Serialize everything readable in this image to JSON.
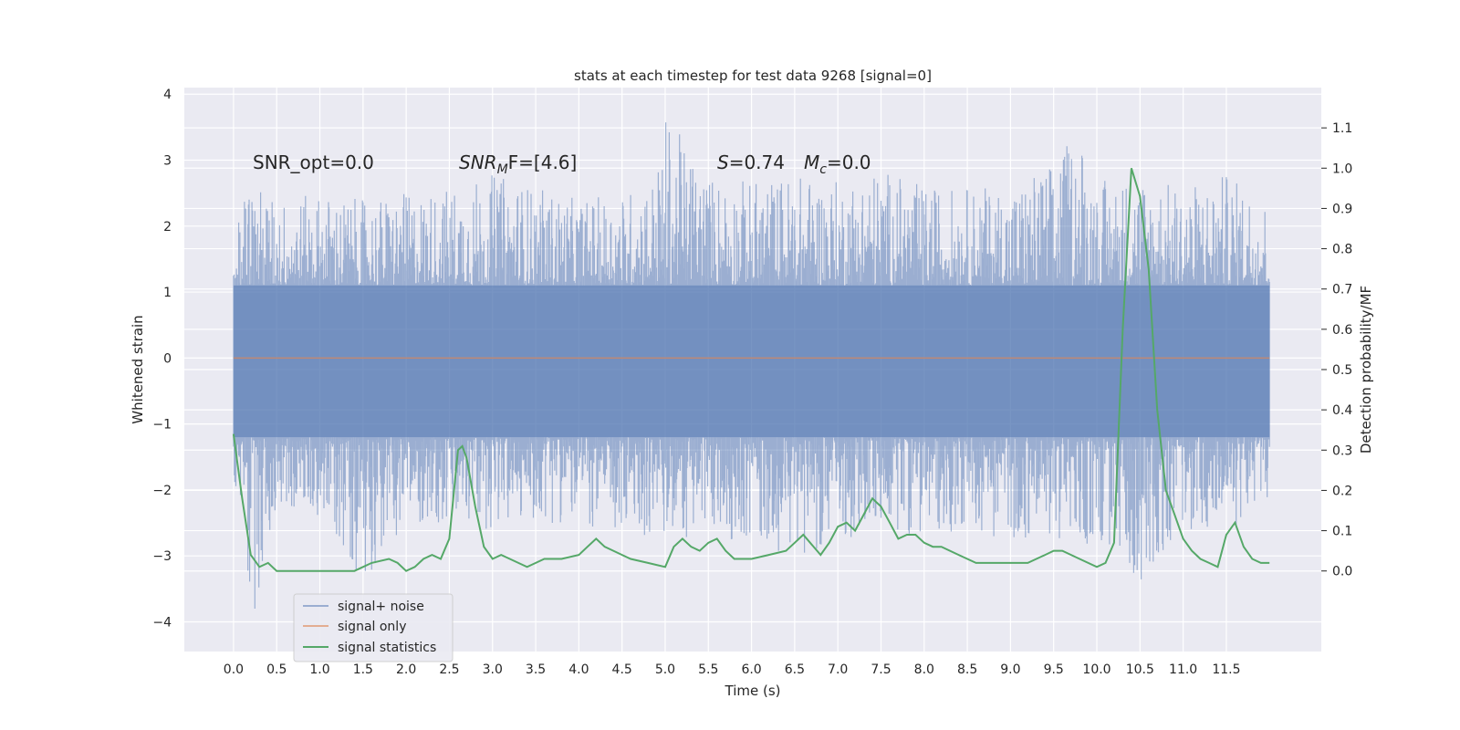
{
  "chart_data": {
    "type": "line",
    "title": "stats at each timestep for test data 9268 [signal=0]",
    "xlabel": "Time (s)",
    "ylabel_left": "Whitened strain",
    "ylabel_right": "Detection probability/MF",
    "xlim": [
      -0.57,
      12.6
    ],
    "ylim_left": [
      -4.45,
      4.1
    ],
    "ylim_right": [
      -0.2,
      1.2
    ],
    "x_ticks": [
      "0.0",
      "0.5",
      "1.0",
      "1.5",
      "2.0",
      "2.5",
      "3.0",
      "3.5",
      "4.0",
      "4.5",
      "5.0",
      "5.5",
      "6.0",
      "6.5",
      "7.0",
      "7.5",
      "8.0",
      "8.5",
      "9.0",
      "9.5",
      "10.0",
      "10.5",
      "11.0",
      "11.5"
    ],
    "y_left_ticks": [
      "4",
      "3",
      "2",
      "1",
      "0",
      "−1",
      "−2",
      "−3",
      "−4"
    ],
    "y_right_ticks": [
      "1.1",
      "1.0",
      "0.9",
      "0.8",
      "0.7",
      "0.6",
      "0.5",
      "0.4",
      "0.3",
      "0.2",
      "0.1",
      "0.0"
    ],
    "annotations": {
      "snr_opt": "SNR_opt=0.0",
      "snr_mf_a": "SNR",
      "snr_mf_sub": "M",
      "snr_mf_b": "F=[4.6]",
      "s_sym": "S",
      "s_val": "=0.74",
      "mc_sym": "M",
      "mc_sub": "c",
      "mc_val": "=0.0"
    },
    "legend": {
      "placement": "lower-left",
      "entries": [
        "signal+ noise",
        "signal only",
        "signal statistics"
      ]
    },
    "noise_envelope": {
      "x": [
        0.0,
        0.1,
        0.2,
        0.5,
        1.0,
        1.5,
        2.0,
        2.5,
        3.0,
        3.5,
        4.0,
        4.5,
        4.9,
        5.0,
        5.5,
        6.0,
        6.5,
        7.0,
        7.5,
        8.0,
        8.5,
        9.0,
        9.5,
        9.8,
        10.0,
        10.5,
        11.0,
        11.5,
        12.0
      ],
      "upper": [
        1.8,
        2.4,
        2.7,
        2.4,
        2.5,
        2.4,
        2.5,
        2.6,
        2.8,
        2.6,
        2.4,
        2.5,
        2.8,
        3.7,
        2.8,
        2.7,
        2.8,
        2.7,
        2.9,
        2.6,
        2.6,
        2.6,
        3.0,
        3.5,
        2.7,
        2.8,
        2.6,
        2.8,
        2.4
      ],
      "lower": [
        -2.0,
        -2.2,
        -4.1,
        -2.3,
        -2.4,
        -3.4,
        -2.5,
        -2.6,
        -2.6,
        -2.5,
        -2.5,
        -2.8,
        -2.7,
        -2.8,
        -2.7,
        -2.8,
        -3.0,
        -2.8,
        -2.6,
        -2.7,
        -2.6,
        -2.8,
        -2.7,
        -3.0,
        -2.8,
        -3.4,
        -2.6,
        -2.7,
        -2.1
      ],
      "core": [
        1.1,
        -1.2
      ]
    },
    "signal_only": {
      "x": [
        0.0,
        12.0
      ],
      "y": [
        0.0,
        0.0
      ]
    },
    "signal_statistics": {
      "x": [
        0.0,
        0.1,
        0.2,
        0.3,
        0.4,
        0.5,
        0.6,
        0.8,
        1.0,
        1.2,
        1.4,
        1.5,
        1.6,
        1.8,
        1.9,
        2.0,
        2.1,
        2.2,
        2.3,
        2.4,
        2.5,
        2.6,
        2.65,
        2.7,
        2.8,
        2.9,
        3.0,
        3.1,
        3.2,
        3.3,
        3.4,
        3.5,
        3.6,
        3.8,
        4.0,
        4.1,
        4.2,
        4.3,
        4.4,
        4.5,
        4.6,
        4.8,
        5.0,
        5.1,
        5.2,
        5.3,
        5.4,
        5.5,
        5.6,
        5.7,
        5.8,
        6.0,
        6.2,
        6.4,
        6.5,
        6.6,
        6.8,
        6.9,
        7.0,
        7.1,
        7.2,
        7.3,
        7.4,
        7.5,
        7.6,
        7.7,
        7.8,
        7.9,
        8.0,
        8.1,
        8.2,
        8.4,
        8.6,
        8.8,
        9.0,
        9.2,
        9.4,
        9.5,
        9.6,
        9.8,
        10.0,
        10.1,
        10.2,
        10.3,
        10.4,
        10.5,
        10.6,
        10.7,
        10.8,
        10.9,
        11.0,
        11.1,
        11.2,
        11.3,
        11.4,
        11.5,
        11.6,
        11.7,
        11.8,
        11.9,
        12.0
      ],
      "y": [
        0.34,
        0.18,
        0.04,
        0.01,
        0.02,
        0.0,
        0.0,
        0.0,
        0.0,
        0.0,
        0.0,
        0.01,
        0.02,
        0.03,
        0.02,
        0.0,
        0.01,
        0.03,
        0.04,
        0.03,
        0.08,
        0.3,
        0.31,
        0.28,
        0.16,
        0.06,
        0.03,
        0.04,
        0.03,
        0.02,
        0.01,
        0.02,
        0.03,
        0.03,
        0.04,
        0.06,
        0.08,
        0.06,
        0.05,
        0.04,
        0.03,
        0.02,
        0.01,
        0.06,
        0.08,
        0.06,
        0.05,
        0.07,
        0.08,
        0.05,
        0.03,
        0.03,
        0.04,
        0.05,
        0.07,
        0.09,
        0.04,
        0.07,
        0.11,
        0.12,
        0.1,
        0.14,
        0.18,
        0.16,
        0.12,
        0.08,
        0.09,
        0.09,
        0.07,
        0.06,
        0.06,
        0.04,
        0.02,
        0.02,
        0.02,
        0.02,
        0.04,
        0.05,
        0.05,
        0.03,
        0.01,
        0.02,
        0.07,
        0.6,
        1.0,
        0.93,
        0.75,
        0.4,
        0.2,
        0.14,
        0.08,
        0.05,
        0.03,
        0.02,
        0.01,
        0.09,
        0.12,
        0.06,
        0.03,
        0.02,
        0.02
      ]
    },
    "colors": {
      "background": "#eaeaf2",
      "grid": "#ffffff",
      "signal_noise": "#4c72b0",
      "signal_only": "#dd8452",
      "signal_statistics": "#55a868"
    }
  }
}
